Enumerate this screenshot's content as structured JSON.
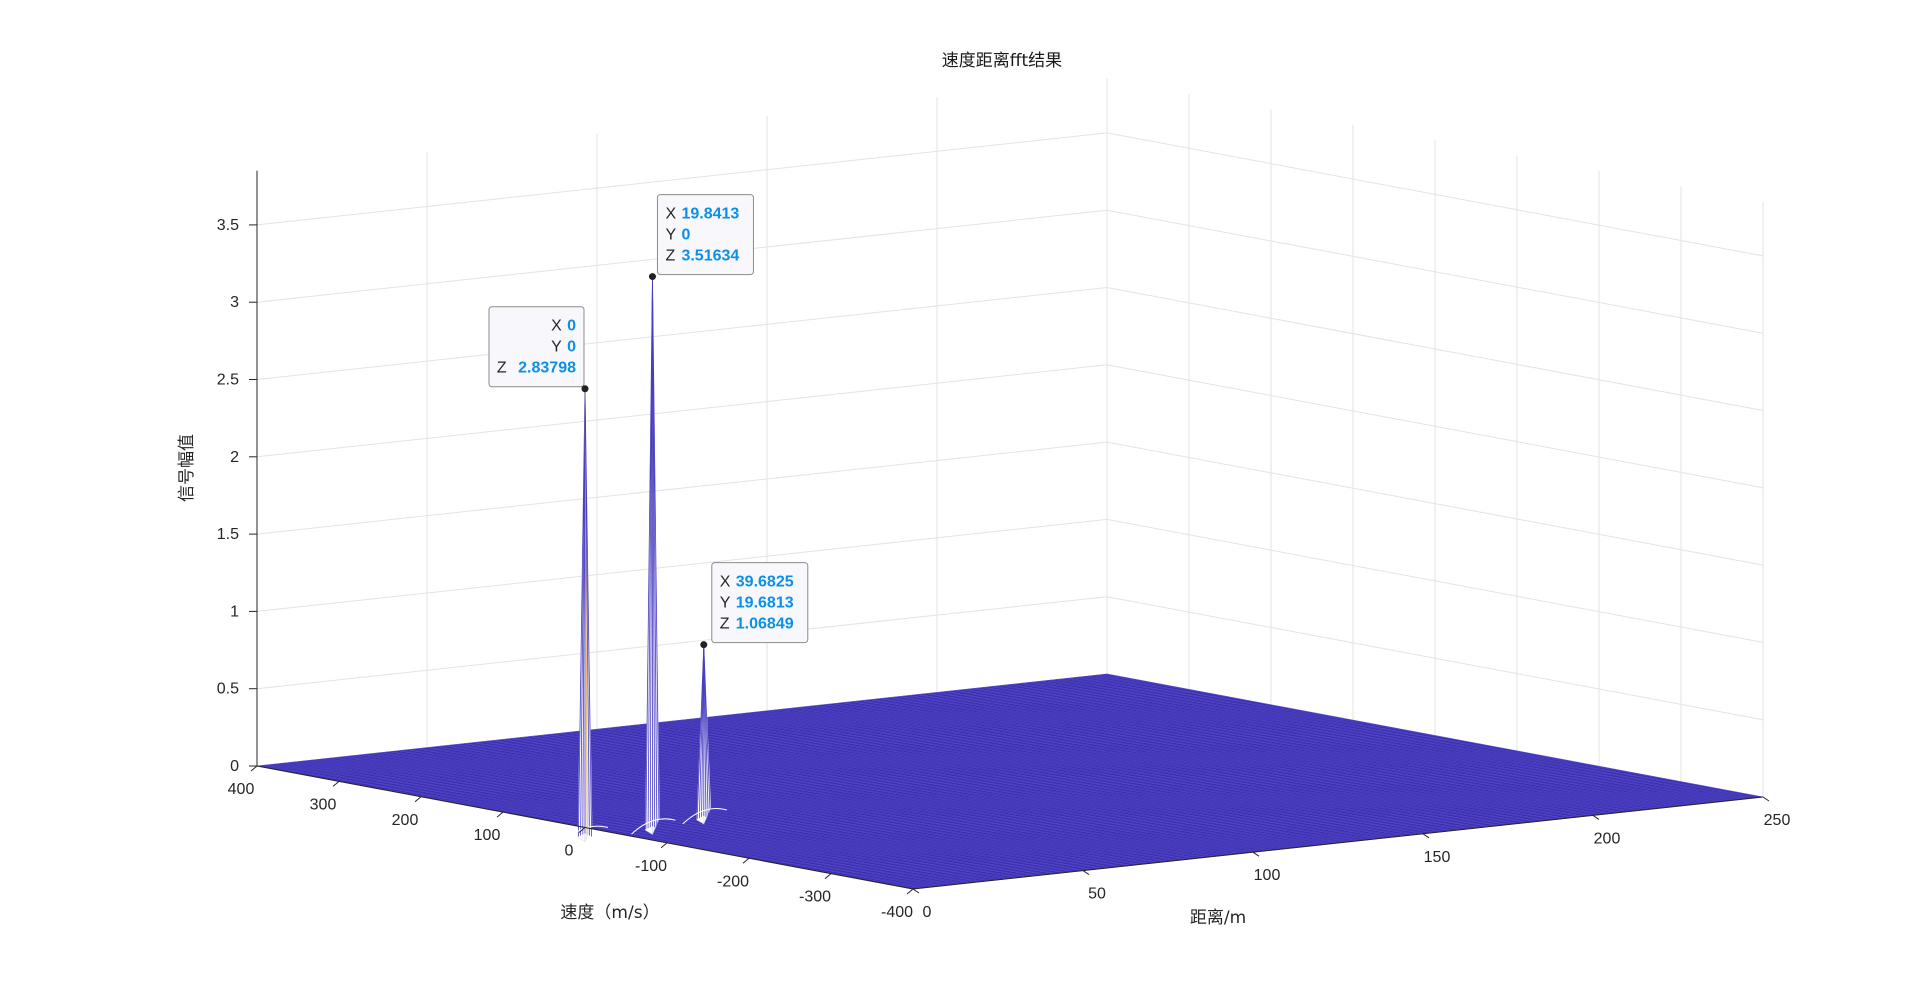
{
  "chart_data": {
    "type": "surface",
    "title": "速度距离fft结果",
    "xlabel": "距离/m",
    "ylabel": "速度（m/s）",
    "zlabel": "信号幅值",
    "xlim": [
      0,
      250
    ],
    "ylim": [
      -400,
      400
    ],
    "zlim": [
      0,
      3.5
    ],
    "x_ticks": [
      "0",
      "50",
      "100",
      "150",
      "200",
      "250"
    ],
    "y_ticks": [
      "400",
      "300",
      "200",
      "100",
      "0",
      "-100",
      "-200",
      "-300",
      "-400"
    ],
    "z_ticks": [
      "0",
      "0.5",
      "1",
      "1.5",
      "2",
      "2.5",
      "3",
      "3.5"
    ],
    "grid": true,
    "peaks": [
      {
        "x": 0,
        "y": 0,
        "z": 2.83798
      },
      {
        "x": 19.8413,
        "y": 0,
        "z": 3.51634
      },
      {
        "x": 39.6825,
        "y": 19.6813,
        "z": 1.06849
      }
    ],
    "colors": {
      "surface": "#3b2fae",
      "surface_mesh": "#5a50d0",
      "peak_edge": "#ffffff",
      "grid": "#e3e3e3",
      "axis": "#262626",
      "datatip_value": "#0a90e8"
    }
  },
  "datatips": [
    {
      "keys": [
        "X",
        "Y",
        "Z"
      ],
      "values": [
        "0",
        "0",
        "2.83798"
      ]
    },
    {
      "keys": [
        "X",
        "Y",
        "Z"
      ],
      "values": [
        "19.8413",
        "0",
        "3.51634"
      ]
    },
    {
      "keys": [
        "X",
        "Y",
        "Z"
      ],
      "values": [
        "39.6825",
        "19.6813",
        "1.06849"
      ]
    }
  ]
}
